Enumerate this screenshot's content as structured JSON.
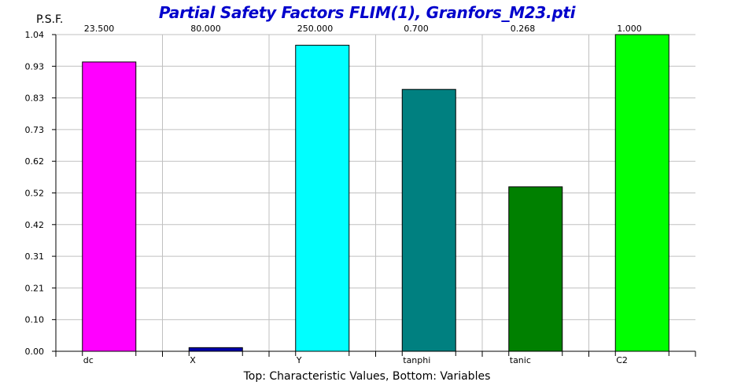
{
  "chart_data": {
    "type": "bar",
    "title": "Partial Safety Factors FLIM(1), Granfors_M23.pti",
    "ylabel": "P.S.F.",
    "xlabel": "Top: Characteristic Values, Bottom: Variables",
    "categories": [
      "dc",
      "X",
      "Y",
      "tanphi",
      "tanic",
      "C2"
    ],
    "top_labels": [
      "23.500",
      "80.000",
      "250.000",
      "0.700",
      "0.268",
      "1.000"
    ],
    "values": [
      0.95,
      0.012,
      1.005,
      0.86,
      0.54,
      1.04
    ],
    "colors": [
      "#ff00ff",
      "#0000aa",
      "#00ffff",
      "#008080",
      "#008000",
      "#00ff00"
    ],
    "ylim": [
      0,
      1.04
    ],
    "y_ticks": [
      "0.00",
      "0.10",
      "0.21",
      "0.31",
      "0.42",
      "0.52",
      "0.62",
      "0.73",
      "0.83",
      "0.93",
      "1.04"
    ],
    "grid": true
  }
}
